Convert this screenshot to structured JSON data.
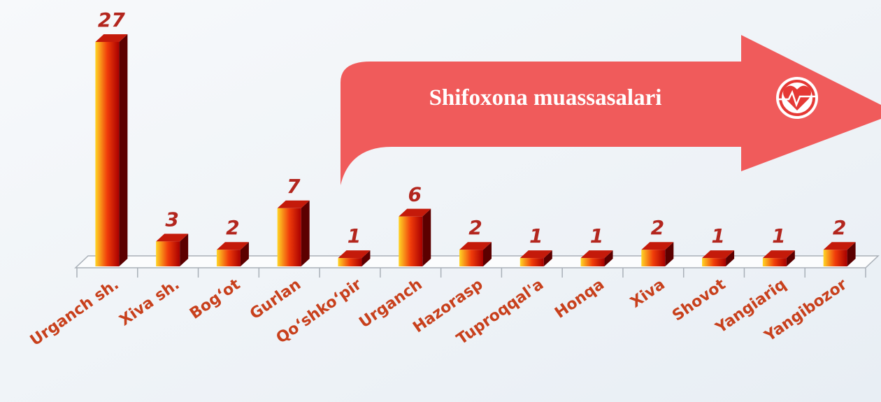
{
  "chart_data": {
    "type": "bar",
    "title": "Shifoxona muassasalari",
    "categories": [
      "Urganch sh.",
      "Xiva sh.",
      "Bog‘ot",
      "Gurlan",
      "Qo‘shko‘pir",
      "Urganch",
      "Hazorasp",
      "Tuproqqal'a",
      "Honqa",
      "Xiva",
      "Shovot",
      "Yangiariq",
      "Yangibozor"
    ],
    "values": [
      27,
      3,
      2,
      7,
      1,
      6,
      2,
      1,
      1,
      2,
      1,
      1,
      2
    ],
    "color": "#f03c0a"
  }
}
